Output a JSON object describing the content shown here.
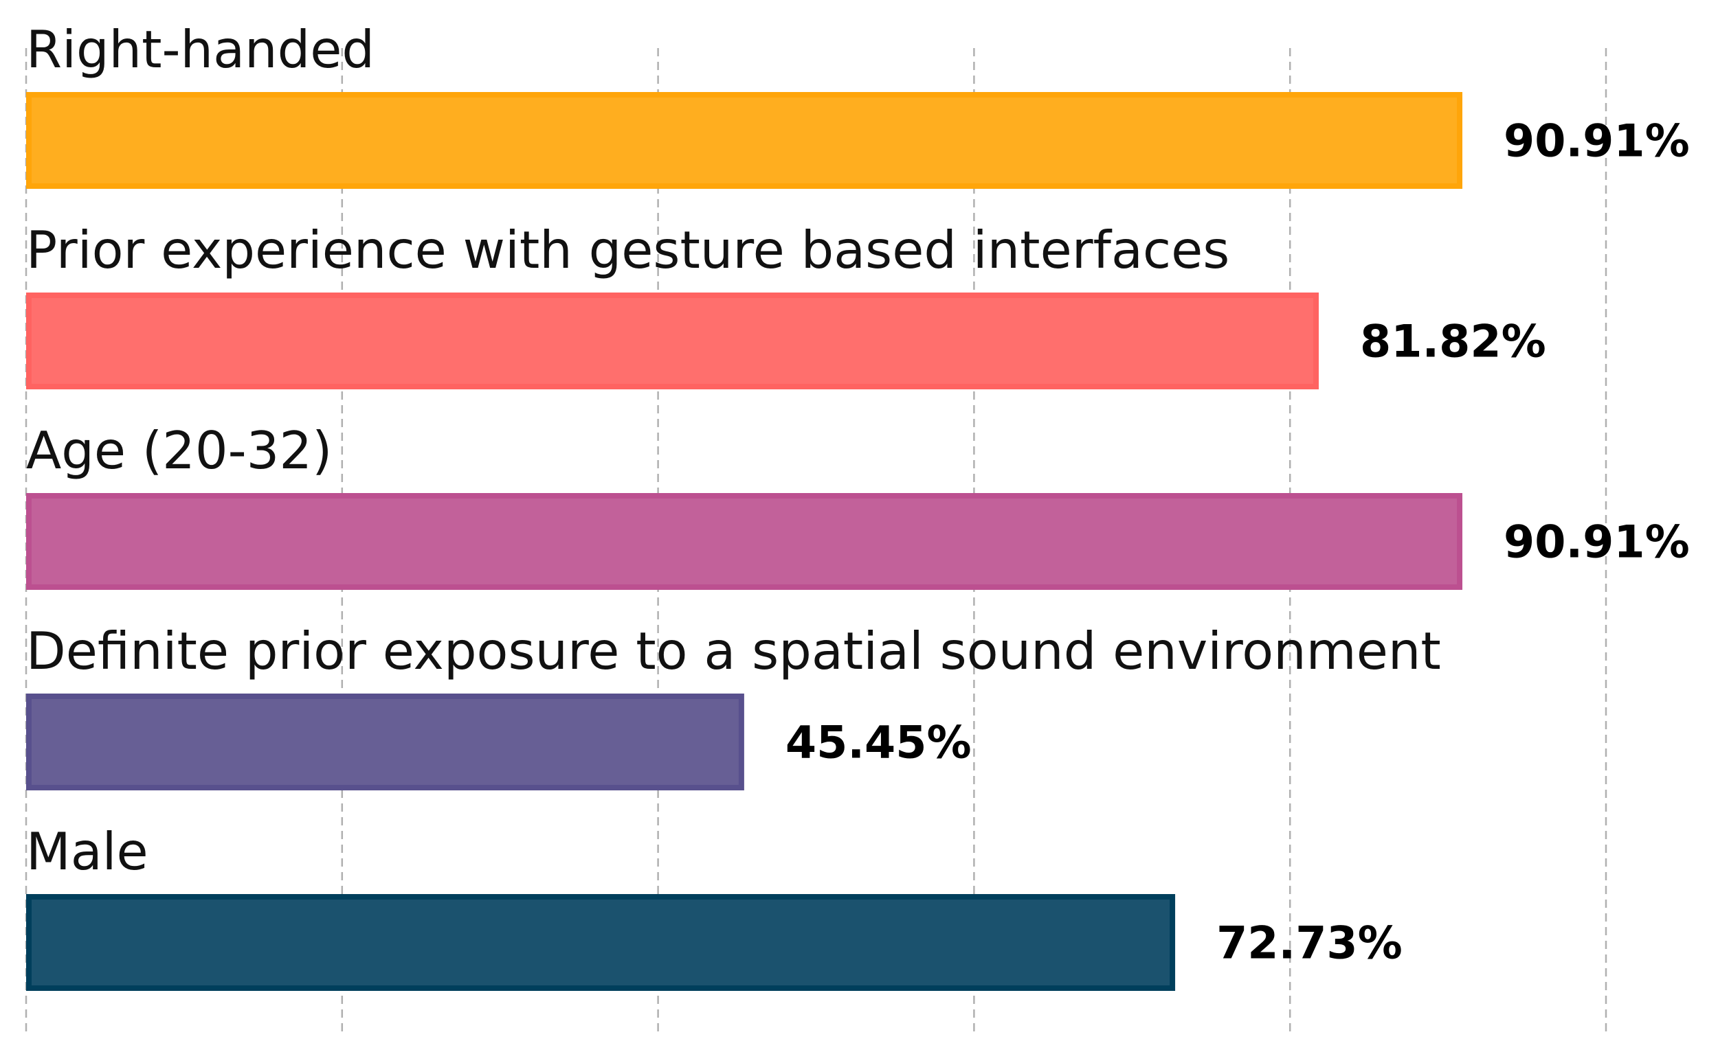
{
  "chart_data": {
    "type": "bar",
    "orientation": "horizontal",
    "title": "",
    "xlabel": "",
    "ylabel": "",
    "xlim": [
      0,
      100
    ],
    "grid": true,
    "x_gridlines": [
      0,
      20,
      40,
      60,
      80,
      100
    ],
    "value_format": "percent-2dp",
    "categories": [
      "Right-handed",
      "Prior experience with gesture based interfaces",
      "Age (20-32)",
      "Definite prior exposure to a spatial sound environment",
      "Male"
    ],
    "values": [
      90.91,
      81.82,
      90.91,
      45.45,
      72.73
    ],
    "value_labels": [
      "90.91%",
      "81.82%",
      "90.91%",
      "45.45%",
      "72.73%"
    ],
    "colors": [
      "#FFAE1F",
      "#FF6F6D",
      "#C2619A",
      "#675F95",
      "#1B526E"
    ],
    "edge_colors": [
      "#FFA50A",
      "#FF6361",
      "#BC5090",
      "#58508D",
      "#003F5C"
    ]
  }
}
